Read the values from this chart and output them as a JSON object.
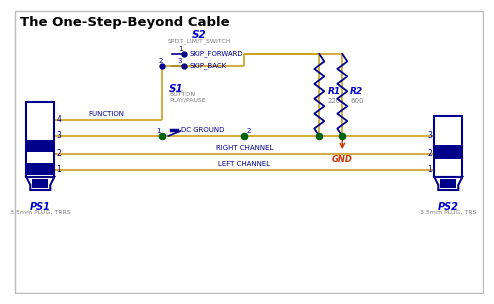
{
  "title": "The One-Step-Beyond Cable",
  "bg_color": "#ffffff",
  "wire_color": "#c8a020",
  "dark_blue": "#00008B",
  "medium_blue": "#0000cd",
  "gray_text": "#808080",
  "red_text": "#cc3300",
  "green_dot": "#006400",
  "plug_fill": "#00008B",
  "plug_bg": "#ffffff",
  "s2_label": "S2",
  "s2_sub": "SPDT_LIMIT_SWITCH",
  "s2_pin1": "SKIP_FORWARD",
  "s2_pin3": "SKIP_BACK",
  "s1_label": "S1",
  "s1_sub1": "BUTTON",
  "s1_sub2": "PLAY/PAUSE",
  "r1_label": "R1",
  "r1_val": "220",
  "r2_label": "R2",
  "r2_val": "600",
  "gnd_label": "GND",
  "ps1_label": "PS1",
  "ps1_sub": "3.5mm PLUG, TRRS",
  "ps2_label": "PS2",
  "ps2_sub": "3.5mm PLUG, TRS",
  "lbl_function": "FUNCTION",
  "lbl_dc_ground": "DC GROUND",
  "lbl_right": "RIGHT CHANNEL",
  "lbl_left": "LEFT CHANNEL"
}
